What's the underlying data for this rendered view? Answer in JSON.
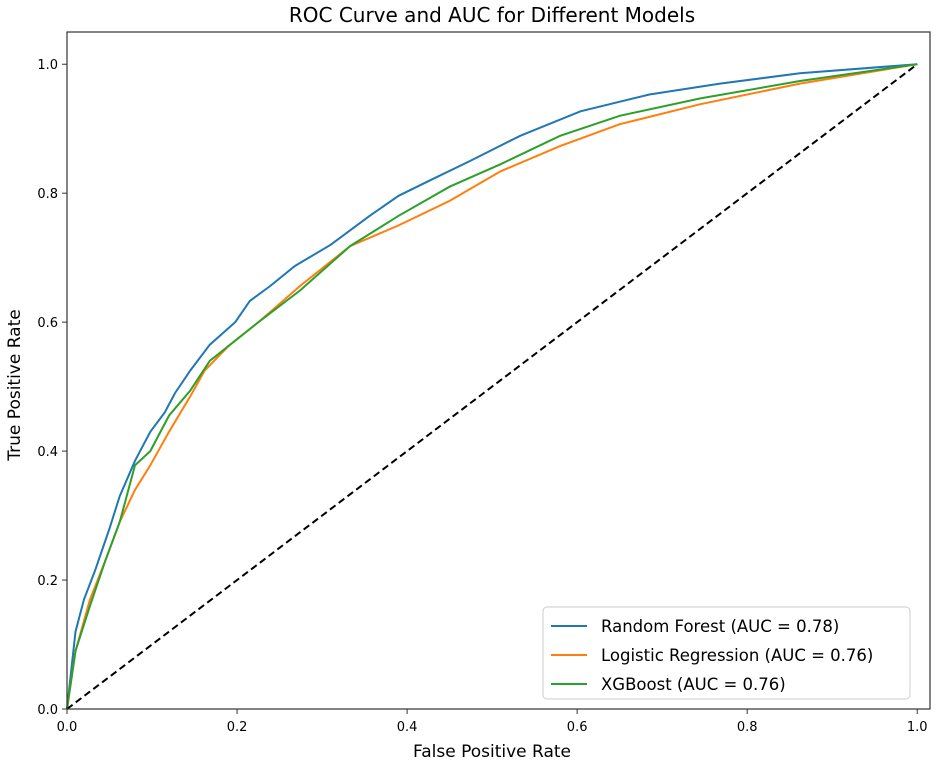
{
  "chart_data": {
    "type": "line",
    "title": "ROC Curve and AUC for Different Models",
    "xlabel": "False Positive Rate",
    "ylabel": "True Positive Rate",
    "xlim": [
      0,
      1.015
    ],
    "ylim": [
      0,
      1.05
    ],
    "xticks": [
      "0.0",
      "0.2",
      "0.4",
      "0.6",
      "0.8",
      "1.0"
    ],
    "yticks": [
      "0.0",
      "0.2",
      "0.4",
      "0.6",
      "0.8",
      "1.0"
    ],
    "grid": false,
    "legend_position": "bottom-right",
    "series": [
      {
        "name": "Random Forest (AUC = 0.78)",
        "color": "#1f77b4",
        "x": [
          0,
          0.01,
          0.02,
          0.033,
          0.05,
          0.062,
          0.08,
          0.098,
          0.115,
          0.127,
          0.145,
          0.168,
          0.198,
          0.215,
          0.239,
          0.268,
          0.31,
          0.356,
          0.39,
          0.427,
          0.474,
          0.533,
          0.604,
          0.685,
          0.768,
          0.862,
          1
        ],
        "y": [
          0,
          0.12,
          0.17,
          0.215,
          0.28,
          0.33,
          0.385,
          0.43,
          0.46,
          0.49,
          0.525,
          0.565,
          0.6,
          0.633,
          0.656,
          0.687,
          0.72,
          0.765,
          0.796,
          0.82,
          0.85,
          0.889,
          0.927,
          0.953,
          0.97,
          0.986,
          1
        ]
      },
      {
        "name": "Logistic Regression (AUC = 0.76)",
        "color": "#ff7f0e",
        "x": [
          0,
          0.01,
          0.027,
          0.045,
          0.062,
          0.08,
          0.098,
          0.12,
          0.145,
          0.162,
          0.19,
          0.227,
          0.274,
          0.333,
          0.39,
          0.45,
          0.51,
          0.58,
          0.65,
          0.745,
          0.862,
          1
        ],
        "y": [
          0,
          0.09,
          0.17,
          0.23,
          0.29,
          0.34,
          0.378,
          0.43,
          0.485,
          0.525,
          0.563,
          0.602,
          0.656,
          0.718,
          0.75,
          0.788,
          0.834,
          0.873,
          0.907,
          0.938,
          0.97,
          1
        ]
      },
      {
        "name": "XGBoost (AUC = 0.76)",
        "color": "#2ca02c",
        "x": [
          0,
          0.01,
          0.027,
          0.045,
          0.062,
          0.08,
          0.098,
          0.12,
          0.145,
          0.168,
          0.19,
          0.227,
          0.274,
          0.333,
          0.39,
          0.45,
          0.51,
          0.58,
          0.65,
          0.745,
          0.862,
          1
        ],
        "y": [
          0,
          0.09,
          0.16,
          0.23,
          0.29,
          0.378,
          0.4,
          0.455,
          0.494,
          0.54,
          0.563,
          0.602,
          0.649,
          0.718,
          0.765,
          0.81,
          0.845,
          0.889,
          0.92,
          0.947,
          0.974,
          1
        ]
      }
    ],
    "reference_line": {
      "x": [
        0,
        1
      ],
      "y": [
        0,
        1
      ],
      "color": "#000000",
      "style": "dashed"
    }
  }
}
